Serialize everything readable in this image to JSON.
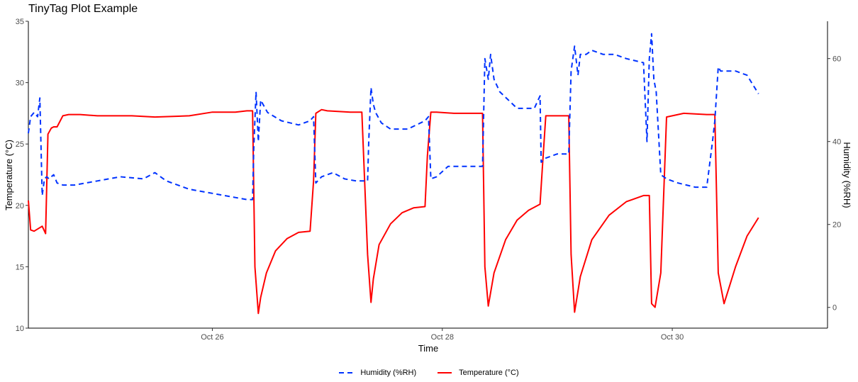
{
  "title": "TinyTag Plot Example",
  "chart_data": {
    "type": "line",
    "title": "TinyTag Plot Example",
    "xlabel": "Time",
    "ylabel": "Temperature (°C)",
    "y2label": "Humidity (%RH)",
    "xlim": [
      24.4,
      31.35
    ],
    "ylim": [
      10,
      35
    ],
    "y2lim": [
      -5,
      69
    ],
    "x_ticks": [
      {
        "value": 26,
        "label": "Oct 26"
      },
      {
        "value": 28,
        "label": "Oct 28"
      },
      {
        "value": 30,
        "label": "Oct 30"
      }
    ],
    "y_ticks": [
      10,
      15,
      20,
      25,
      30,
      35
    ],
    "y2_ticks": [
      0,
      20,
      40,
      60
    ],
    "grid": false,
    "legend_position": "bottom",
    "series": [
      {
        "name": "Temperature (°C)",
        "axis": "left",
        "color": "#ff0000",
        "style": "solid",
        "x": [
          24.4,
          24.42,
          24.45,
          24.52,
          24.55,
          24.57,
          24.6,
          24.62,
          24.65,
          24.7,
          24.75,
          24.8,
          24.85,
          25.0,
          25.3,
          25.5,
          25.8,
          26.0,
          26.2,
          26.3,
          26.35,
          26.37,
          26.4,
          26.42,
          26.47,
          26.55,
          26.65,
          26.75,
          26.85,
          26.88,
          26.9,
          26.95,
          27.0,
          27.2,
          27.3,
          27.35,
          27.38,
          27.4,
          27.45,
          27.55,
          27.65,
          27.75,
          27.85,
          27.87,
          27.9,
          27.95,
          28.1,
          28.25,
          28.35,
          28.37,
          28.4,
          28.45,
          28.55,
          28.65,
          28.75,
          28.85,
          28.87,
          28.9,
          29.0,
          29.1,
          29.12,
          29.15,
          29.2,
          29.3,
          29.45,
          29.6,
          29.75,
          29.8,
          29.82,
          29.85,
          29.9,
          29.95,
          30.1,
          30.3,
          30.37,
          30.4,
          30.45,
          30.55,
          30.65,
          30.75
        ],
        "y": [
          20.4,
          18.0,
          17.9,
          18.3,
          17.7,
          25.8,
          26.3,
          26.4,
          26.4,
          27.3,
          27.4,
          27.4,
          27.4,
          27.3,
          27.3,
          27.2,
          27.3,
          27.6,
          27.6,
          27.7,
          27.7,
          15.0,
          11.2,
          12.5,
          14.5,
          16.3,
          17.3,
          17.8,
          17.9,
          22.0,
          27.5,
          27.8,
          27.7,
          27.6,
          27.6,
          16.0,
          12.1,
          14.0,
          16.8,
          18.5,
          19.4,
          19.8,
          19.9,
          24.0,
          27.6,
          27.6,
          27.5,
          27.5,
          27.5,
          15.0,
          11.8,
          14.5,
          17.2,
          18.8,
          19.6,
          20.1,
          23.0,
          27.3,
          27.3,
          27.3,
          16.0,
          11.3,
          14.2,
          17.2,
          19.2,
          20.3,
          20.8,
          20.8,
          12.0,
          11.7,
          14.5,
          27.2,
          27.5,
          27.4,
          27.4,
          14.5,
          12.0,
          15.0,
          17.5,
          19.0
        ]
      },
      {
        "name": "Humidity (%RH)",
        "axis": "right",
        "color": "#0033ff",
        "style": "dashed",
        "x": [
          24.4,
          24.42,
          24.45,
          24.48,
          24.5,
          24.52,
          24.54,
          24.56,
          24.58,
          24.6,
          24.62,
          24.65,
          24.7,
          24.8,
          25.0,
          25.2,
          25.4,
          25.5,
          25.6,
          25.8,
          26.0,
          26.2,
          26.3,
          26.35,
          26.36,
          26.38,
          26.4,
          26.42,
          26.44,
          26.48,
          26.6,
          26.75,
          26.85,
          26.88,
          26.9,
          26.95,
          27.05,
          27.15,
          27.25,
          27.35,
          27.36,
          27.38,
          27.4,
          27.42,
          27.47,
          27.55,
          27.7,
          27.85,
          27.88,
          27.9,
          27.95,
          28.05,
          28.2,
          28.35,
          28.37,
          28.4,
          28.42,
          28.45,
          28.5,
          28.65,
          28.8,
          28.85,
          28.86,
          28.9,
          29.0,
          29.1,
          29.12,
          29.15,
          29.18,
          29.2,
          29.25,
          29.3,
          29.4,
          29.5,
          29.6,
          29.75,
          29.78,
          29.8,
          29.82,
          29.84,
          29.86,
          29.9,
          29.95,
          30.05,
          30.2,
          30.3,
          30.35,
          30.37,
          30.4,
          30.42,
          30.45,
          30.55,
          30.65,
          30.75
        ],
        "y": [
          42.0,
          46.0,
          47.0,
          46.0,
          50.5,
          27.0,
          31.0,
          31.5,
          31.0,
          31.5,
          32.0,
          30.0,
          29.5,
          29.5,
          30.5,
          31.5,
          31.0,
          32.5,
          30.5,
          28.5,
          27.5,
          26.5,
          26.0,
          26.0,
          38.0,
          52.0,
          40.0,
          50.0,
          49.0,
          47.0,
          45.0,
          44.0,
          45.0,
          46.0,
          30.0,
          31.5,
          32.5,
          31.0,
          30.5,
          30.5,
          40.0,
          53.0,
          49.0,
          47.0,
          44.5,
          43.0,
          43.0,
          45.0,
          46.0,
          31.0,
          31.5,
          34.0,
          34.0,
          34.0,
          60.0,
          55.0,
          61.0,
          55.0,
          52.0,
          48.0,
          48.0,
          51.0,
          35.0,
          36.0,
          37.0,
          37.0,
          57.0,
          63.0,
          56.0,
          61.0,
          61.0,
          62.0,
          61.0,
          61.0,
          60.0,
          59.0,
          40.0,
          60.0,
          66.0,
          55.0,
          52.0,
          32.0,
          31.0,
          30.0,
          29.0,
          29.0,
          40.0,
          45.0,
          58.0,
          57.0,
          57.0,
          57.0,
          56.0,
          51.5
        ]
      }
    ]
  },
  "legend": {
    "humidity_label": "Humidity (%RH)",
    "temperature_label": "Temperature (°C)",
    "humidity_color": "#0033ff",
    "temperature_color": "#ff0000"
  }
}
